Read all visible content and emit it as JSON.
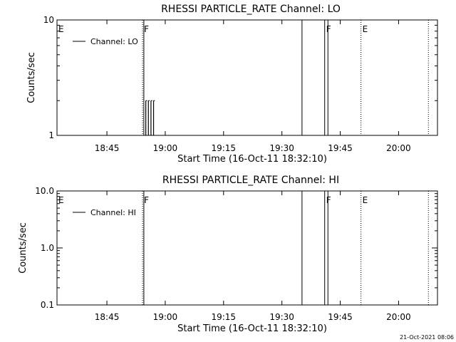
{
  "chart_data": [
    {
      "type": "line",
      "title": "RHESSI PARTICLE_RATE Channel: LO",
      "xlabel": "Start Time (16-Oct-11 18:32:10)",
      "ylabel": "Counts/sec",
      "yscale": "log",
      "ylim": [
        1,
        10
      ],
      "y_tick_labels": [
        "1",
        "10"
      ],
      "x_tick_labels": [
        "18:45",
        "19:00",
        "19:15",
        "19:30",
        "19:45",
        "20:00"
      ],
      "xlim": [
        "18:32:10",
        "20:10:00"
      ],
      "legend": {
        "placement": "top-left",
        "entries": [
          "Channel: LO"
        ]
      },
      "series": [
        {
          "name": "Channel: LO",
          "points": [
            {
              "x": "18:55:00",
              "y": 2
            },
            {
              "x": "18:55:20",
              "y": 1
            },
            {
              "x": "18:55:40",
              "y": 2
            },
            {
              "x": "18:56:00",
              "y": 1
            },
            {
              "x": "18:56:20",
              "y": 2
            },
            {
              "x": "18:56:40",
              "y": 1
            },
            {
              "x": "18:57:00",
              "y": 2
            },
            {
              "x": "18:57:20",
              "y": 1
            }
          ]
        }
      ],
      "markers": [
        {
          "label": "E",
          "time": "18:32:10",
          "style": "none"
        },
        {
          "label": "F",
          "time": "18:54:10",
          "style": "dotted"
        },
        {
          "label": "",
          "time": "18:54:30",
          "style": "solid"
        },
        {
          "label": "",
          "time": "19:35:10",
          "style": "solid"
        },
        {
          "label": "F",
          "time": "19:41:00",
          "style": "solid"
        },
        {
          "label": "",
          "time": "19:41:50",
          "style": "solid"
        },
        {
          "label": "E",
          "time": "19:50:20",
          "style": "dotted"
        },
        {
          "label": "",
          "time": "20:07:40",
          "style": "dotted"
        }
      ]
    },
    {
      "type": "line",
      "title": "RHESSI PARTICLE_RATE Channel: HI",
      "xlabel": "Start Time (16-Oct-11 18:32:10)",
      "ylabel": "Counts/sec",
      "yscale": "log",
      "ylim": [
        0.1,
        10
      ],
      "y_tick_labels": [
        "0.1",
        "1.0",
        "10.0"
      ],
      "x_tick_labels": [
        "18:45",
        "19:00",
        "19:15",
        "19:30",
        "19:45",
        "20:00"
      ],
      "xlim": [
        "18:32:10",
        "20:10:00"
      ],
      "legend": {
        "placement": "top-left",
        "entries": [
          "Channel: HI"
        ]
      },
      "series": [
        {
          "name": "Channel: HI",
          "points": []
        }
      ],
      "markers": [
        {
          "label": "E",
          "time": "18:32:10",
          "style": "none"
        },
        {
          "label": "F",
          "time": "18:54:10",
          "style": "dotted"
        },
        {
          "label": "",
          "time": "18:54:30",
          "style": "solid"
        },
        {
          "label": "",
          "time": "19:35:10",
          "style": "solid"
        },
        {
          "label": "F",
          "time": "19:41:00",
          "style": "solid"
        },
        {
          "label": "",
          "time": "19:41:50",
          "style": "solid"
        },
        {
          "label": "E",
          "time": "19:50:20",
          "style": "dotted"
        },
        {
          "label": "",
          "time": "20:07:40",
          "style": "dotted"
        }
      ]
    }
  ],
  "footer": {
    "timestamp": "21-Oct-2021 08:06"
  }
}
